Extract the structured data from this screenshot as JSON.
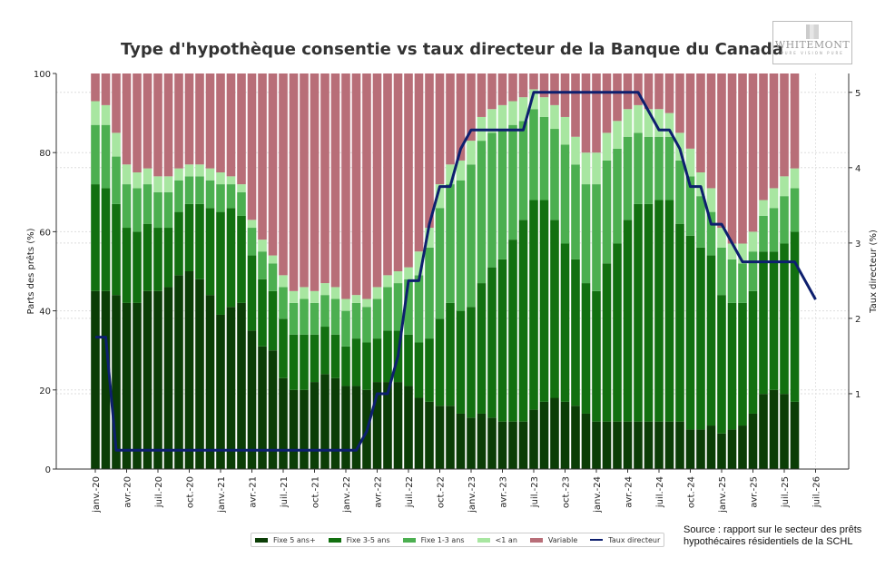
{
  "chart_data": {
    "type": "bar",
    "stacked": true,
    "title": "Type d'hypothèque consentie vs taux directeur de la Banque du Canada",
    "ylabel": "Parts des prêts (%)",
    "y2label": "Taux directeur (%)",
    "ylim": [
      0,
      100
    ],
    "y2lim": [
      0,
      5.25
    ],
    "yticks": [
      0,
      20,
      40,
      60,
      80,
      100
    ],
    "y2ticks": [
      1,
      2,
      3,
      4,
      5
    ],
    "xtick_labels": [
      "janv.-20",
      "avr.-20",
      "juil.-20",
      "oct.-20",
      "janv.-21",
      "avr.-21",
      "juil.-21",
      "oct.-21",
      "janv.-22",
      "avr.-22",
      "juil.-22",
      "oct.-22",
      "janv.-23",
      "avr.-23",
      "juil.-23",
      "oct.-23",
      "janv.-24",
      "avr.-24",
      "juil.-24",
      "oct.-24",
      "janv.-25",
      "avr.-25",
      "juil.-25",
      "juil.-26"
    ],
    "grid": true,
    "legend_position": "bottom-center",
    "series": [
      {
        "name": "Fixe 5 ans+",
        "color": "#0b3d06",
        "values": [
          45,
          45,
          44,
          42,
          42,
          45,
          45,
          46,
          49,
          50,
          48,
          44,
          39,
          41,
          42,
          35,
          31,
          30,
          23,
          20,
          20,
          22,
          24,
          23,
          21,
          21,
          20,
          22,
          22,
          22,
          21,
          18,
          17,
          16,
          16,
          14,
          13,
          14,
          13,
          12,
          12,
          12,
          15,
          17,
          18,
          17,
          16,
          14,
          12,
          12,
          12,
          12,
          12,
          12,
          12,
          12,
          12,
          10,
          10,
          11,
          9,
          10,
          11,
          14,
          19,
          20,
          19,
          17
        ]
      },
      {
        "name": "Fixe 3-5 ans",
        "color": "#127010",
        "values": [
          27,
          26,
          23,
          19,
          18,
          17,
          16,
          15,
          16,
          17,
          19,
          22,
          26,
          25,
          22,
          19,
          17,
          15,
          15,
          14,
          14,
          12,
          12,
          11,
          10,
          12,
          12,
          11,
          13,
          13,
          13,
          14,
          16,
          22,
          26,
          26,
          28,
          33,
          38,
          41,
          46,
          51,
          53,
          51,
          45,
          40,
          37,
          33,
          33,
          40,
          45,
          51,
          55,
          55,
          56,
          56,
          50,
          49,
          46,
          43,
          35,
          32,
          31,
          31,
          36,
          35,
          38,
          43
        ]
      },
      {
        "name": "Fixe 1-3 ans",
        "color": "#4caf50",
        "values": [
          15,
          16,
          12,
          11,
          11,
          10,
          9,
          9,
          8,
          7,
          7,
          7,
          7,
          6,
          6,
          7,
          7,
          7,
          8,
          8,
          9,
          8,
          8,
          9,
          9,
          9,
          9,
          10,
          11,
          12,
          14,
          17,
          23,
          28,
          30,
          33,
          36,
          36,
          34,
          33,
          29,
          25,
          23,
          21,
          23,
          25,
          24,
          25,
          27,
          26,
          24,
          21,
          18,
          17,
          16,
          16,
          16,
          15,
          13,
          11,
          12,
          11,
          10,
          10,
          9,
          11,
          12,
          11
        ]
      },
      {
        "name": "<1 an",
        "color": "#a8e6a1",
        "values": [
          6,
          5,
          6,
          5,
          4,
          4,
          4,
          4,
          3,
          3,
          3,
          3,
          3,
          2,
          2,
          2,
          3,
          2,
          3,
          3,
          3,
          3,
          3,
          3,
          3,
          2,
          2,
          3,
          3,
          3,
          3,
          6,
          5,
          6,
          5,
          5,
          6,
          6,
          6,
          6,
          6,
          6,
          5,
          5,
          6,
          7,
          7,
          8,
          8,
          7,
          7,
          7,
          7,
          7,
          7,
          6,
          7,
          7,
          6,
          6,
          5,
          4,
          5,
          5,
          4,
          5,
          5,
          5
        ]
      },
      {
        "name": "Variable",
        "color": "#b86e78",
        "values": [
          7,
          8,
          15,
          23,
          25,
          24,
          26,
          26,
          24,
          23,
          23,
          24,
          25,
          26,
          28,
          37,
          42,
          46,
          51,
          55,
          54,
          55,
          53,
          54,
          57,
          56,
          57,
          54,
          51,
          50,
          49,
          45,
          39,
          28,
          23,
          22,
          17,
          11,
          9,
          8,
          7,
          6,
          4,
          6,
          8,
          11,
          16,
          20,
          20,
          15,
          12,
          9,
          8,
          9,
          9,
          10,
          15,
          19,
          25,
          29,
          39,
          43,
          43,
          40,
          32,
          29,
          26,
          24
        ]
      }
    ],
    "line": {
      "name": "Taux directeur",
      "color": "#0d1f6e",
      "values": [
        1.75,
        1.75,
        0.25,
        0.25,
        0.25,
        0.25,
        0.25,
        0.25,
        0.25,
        0.25,
        0.25,
        0.25,
        0.25,
        0.25,
        0.25,
        0.25,
        0.25,
        0.25,
        0.25,
        0.25,
        0.25,
        0.25,
        0.25,
        0.25,
        0.25,
        0.25,
        0.5,
        1.0,
        1.0,
        1.5,
        2.5,
        2.5,
        3.25,
        3.75,
        3.75,
        4.25,
        4.5,
        4.5,
        4.5,
        4.5,
        4.5,
        4.5,
        5.0,
        5.0,
        5.0,
        5.0,
        5.0,
        5.0,
        5.0,
        5.0,
        5.0,
        5.0,
        5.0,
        4.75,
        4.5,
        4.5,
        4.25,
        3.75,
        3.75,
        3.25,
        3.25,
        3.0,
        2.75,
        2.75,
        2.75,
        2.75,
        2.75,
        2.75,
        null,
        2.25
      ]
    }
  },
  "logo": {
    "name": "WHITEMONT",
    "tagline": "PURE VISION PURE"
  },
  "source": {
    "line1": "Source : rapport sur le secteur des prêts",
    "line2": "hypothécaires résidentiels de la SCHL"
  }
}
